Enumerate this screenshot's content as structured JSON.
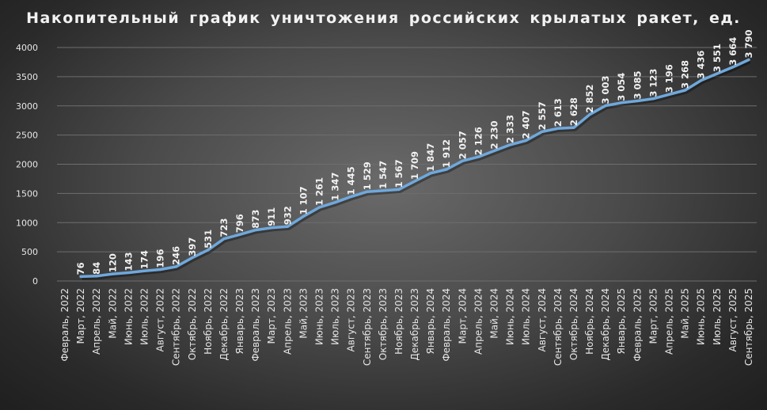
{
  "chart_data": {
    "type": "line",
    "title": "Накопительный  график  уничтожения  российских  крылатых  ракет,  ед.",
    "xlabel": "",
    "ylabel": "",
    "ylim": [
      0,
      4000
    ],
    "yticks": [
      "0",
      "500",
      "1000",
      "1500",
      "2000",
      "2500",
      "3000",
      "3500",
      "4000"
    ],
    "grid": true,
    "legend": "none",
    "line_color": "#6fa8dc",
    "categories": [
      "Февраль, 2022",
      "Март, 2022",
      "Апрель, 2022",
      "Май, 2022",
      "Июнь, 2022",
      "Июль, 2022",
      "Август, 2022",
      "Сентябрь, 2022",
      "Октябрь, 2022",
      "Ноябрь, 2022",
      "Декабрь, 2022",
      "Январь, 2023",
      "Февраль, 2023",
      "Март, 2023",
      "Апрель, 2023",
      "Май, 2023",
      "Июнь, 2023",
      "Июль, 2023",
      "Август, 2023",
      "Сентябрь, 2023",
      "Октябрь, 2023",
      "Ноябрь, 2023",
      "Декабрь, 2023",
      "Январь, 2024",
      "Февраль, 2024",
      "Март, 2024",
      "Апрель, 2024",
      "Май, 2024",
      "Июнь, 2024",
      "Июль, 2024",
      "Август, 2024",
      "Сентябрь, 2024",
      "Октябрь, 2024",
      "Ноябрь, 2024",
      "Декабрь, 2024",
      "Январь, 2025",
      "Февраль, 2025",
      "Март, 2025",
      "Апрель, 2025",
      "Май, 2025",
      "Июнь, 2025",
      "Июль, 2025",
      "Август, 2025",
      "Сентябрь, 2025"
    ],
    "values": [
      null,
      76,
      84,
      120,
      143,
      174,
      196,
      246,
      397,
      531,
      723,
      796,
      873,
      911,
      932,
      1107,
      1261,
      1347,
      1445,
      1529,
      1547,
      1567,
      1709,
      1847,
      1912,
      2057,
      2126,
      2230,
      2333,
      2407,
      2557,
      2613,
      2628,
      2852,
      3003,
      3054,
      3085,
      3123,
      3196,
      3268,
      3436,
      3551,
      3664,
      3790
    ],
    "labels": [
      "",
      "76",
      "84",
      "120",
      "143",
      "174",
      "196",
      "246",
      "397",
      "531",
      "723",
      "796",
      "873",
      "911",
      "932",
      "1 107",
      "1 261",
      "1 347",
      "1 445",
      "1 529",
      "1 547",
      "1 567",
      "1 709",
      "1 847",
      "1 912",
      "2 057",
      "2 126",
      "2 230",
      "2 333",
      "2 407",
      "2 557",
      "2 613",
      "2 628",
      "2 852",
      "3 003",
      "3 054",
      "3 085",
      "3 123",
      "3 196",
      "3 268",
      "3 436",
      "3 551",
      "3 664",
      "3 790"
    ]
  }
}
